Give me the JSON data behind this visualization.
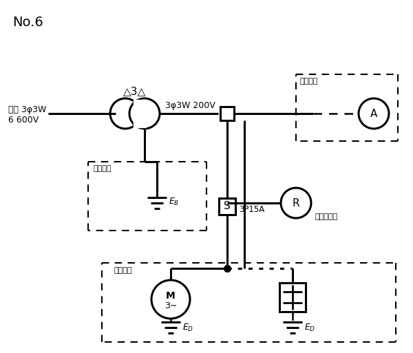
{
  "title": "No.6",
  "bg_color": "#ffffff",
  "line_color": "#000000",
  "fig_width": 6.0,
  "fig_height": 5.13,
  "source_label1": "電源 3φ3W",
  "source_label2": "6 600V",
  "transformer_label": "△3△",
  "output_label": "3φ3W 200V",
  "shiko_label": "施工省略",
  "r_label": "R",
  "s_label": "S",
  "a_label": "A",
  "switch_label": "3P15A",
  "unten_label": "運転表示灯",
  "m_label_top": "M",
  "m_label_bot": "3∼"
}
